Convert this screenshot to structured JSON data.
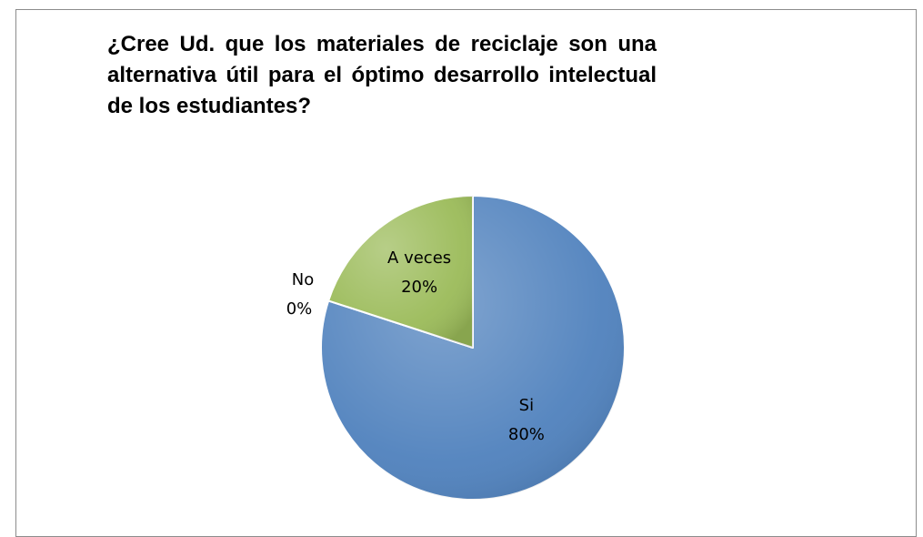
{
  "chart_data": {
    "type": "pie",
    "title": "¿Cree Ud. que los materiales de reciclaje son una alternativa útil para el óptimo desarrollo intelectual de los estudiantes?",
    "categories": [
      "Si",
      "No",
      "A veces"
    ],
    "values": [
      80,
      0,
      20
    ],
    "value_labels": [
      "80%",
      "0%",
      "20%"
    ],
    "colors": [
      "#4f81bd",
      "#c0504d",
      "#9bbb59"
    ]
  }
}
